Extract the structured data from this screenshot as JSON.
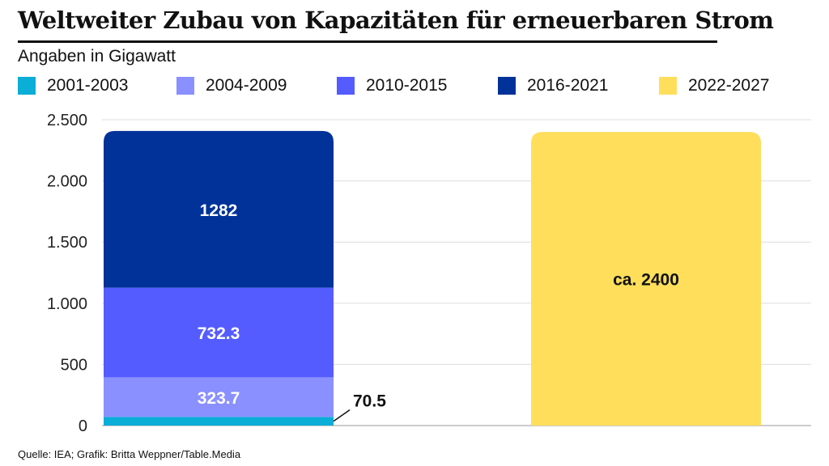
{
  "title": "Weltweiter Zubau von Kapazitäten für erneuerbaren Strom",
  "subtitle": "Angaben in Gigawatt",
  "source": "Quelle: IEA; Grafik: Britta Weppner/Table.Media",
  "chart_data": {
    "type": "bar",
    "stacked": true,
    "ylim": [
      0,
      2500
    ],
    "yticks": [
      0,
      500,
      1000,
      1500,
      2000,
      2500
    ],
    "ytick_labels": [
      "0",
      "500",
      "1.000",
      "1.500",
      "2.000",
      "2.500"
    ],
    "grid": true,
    "legend_position": "top",
    "series": [
      {
        "name": "2001-2003",
        "color": "#0aaed6",
        "values": [
          70.5,
          0
        ],
        "labels": [
          "70.5",
          ""
        ]
      },
      {
        "name": "2004-2009",
        "color": "#8a90ff",
        "values": [
          323.7,
          0
        ],
        "labels": [
          "323.7",
          ""
        ]
      },
      {
        "name": "2010-2015",
        "color": "#545cff",
        "values": [
          732.3,
          0
        ],
        "labels": [
          "732.3",
          ""
        ]
      },
      {
        "name": "2016-2021",
        "color": "#013299",
        "values": [
          1282,
          0
        ],
        "labels": [
          "1282",
          ""
        ]
      },
      {
        "name": "2022-2027",
        "color": "#ffde5c",
        "values": [
          0,
          2400
        ],
        "labels": [
          "",
          "ca. 2400"
        ]
      }
    ]
  }
}
